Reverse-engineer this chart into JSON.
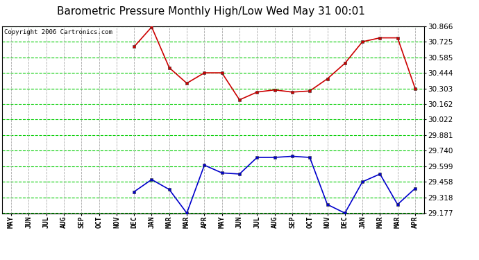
{
  "title": "Barometric Pressure Monthly High/Low Wed May 31 00:01",
  "copyright": "Copyright 2006 Cartronics.com",
  "x_labels": [
    "MAY",
    "JUN",
    "JUL",
    "AUG",
    "SEP",
    "OCT",
    "NOV",
    "DEC",
    "JAN",
    "MAR",
    "MAR",
    "APR",
    "MAY",
    "JUN",
    "JUL",
    "AUG",
    "SEP",
    "OCT",
    "NOV",
    "DEC",
    "JAN",
    "MAR",
    "MAR",
    "APR"
  ],
  "high_values": [
    null,
    null,
    null,
    null,
    null,
    null,
    null,
    30.68,
    30.858,
    30.49,
    30.35,
    30.444,
    30.444,
    30.2,
    30.27,
    30.29,
    30.27,
    30.28,
    30.39,
    30.53,
    30.725,
    30.76,
    30.76,
    30.303
  ],
  "low_values": [
    null,
    null,
    null,
    null,
    null,
    null,
    null,
    29.37,
    29.48,
    29.39,
    29.177,
    29.61,
    29.54,
    29.53,
    29.68,
    29.68,
    29.69,
    29.68,
    29.255,
    29.177,
    29.46,
    29.53,
    29.255,
    29.4
  ],
  "y_ticks": [
    29.177,
    29.318,
    29.458,
    29.599,
    29.74,
    29.881,
    30.022,
    30.162,
    30.303,
    30.444,
    30.585,
    30.725,
    30.866
  ],
  "y_min": 29.177,
  "y_max": 30.866,
  "high_color": "#cc0000",
  "low_color": "#0000cc",
  "grid_color_h": "#00cc00",
  "grid_color_v": "#aaaaaa",
  "bg_color": "#ffffff",
  "title_fontsize": 11,
  "copyright_fontsize": 6.5
}
